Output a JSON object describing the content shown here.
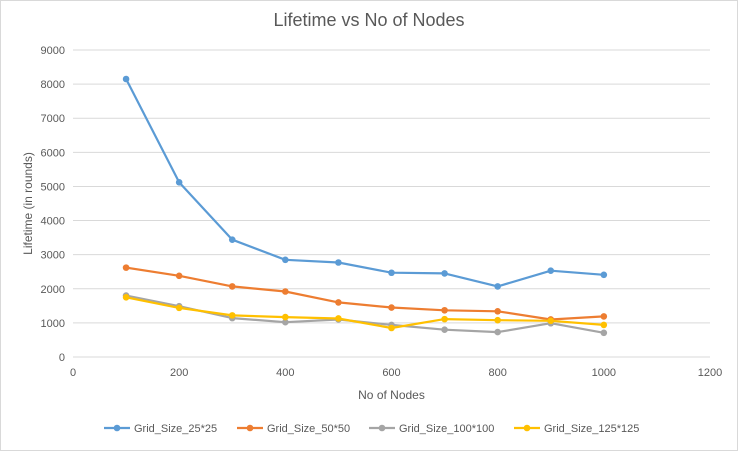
{
  "chart_data": {
    "type": "scatter",
    "title": "Lifetime vs No of Nodes",
    "xlabel": "No of Nodes",
    "ylabel": "Lifetime (in rounds)",
    "xlim": [
      0,
      1200
    ],
    "ylim": [
      0,
      9000
    ],
    "xticks": [
      0,
      200,
      400,
      600,
      800,
      1000,
      1200
    ],
    "yticks": [
      0,
      1000,
      2000,
      3000,
      4000,
      5000,
      6000,
      7000,
      8000,
      9000
    ],
    "grid": "horizontal",
    "legend_position": "bottom",
    "x": [
      100,
      200,
      300,
      400,
      500,
      600,
      700,
      800,
      900,
      1000
    ],
    "series": [
      {
        "name": "Grid_Size_25*25",
        "color": "#5b9bd5",
        "values": [
          8150,
          5120,
          3440,
          2850,
          2770,
          2470,
          2450,
          2070,
          2530,
          2410
        ]
      },
      {
        "name": "Grid_Size_50*50",
        "color": "#ed7d31",
        "values": [
          2620,
          2380,
          2070,
          1920,
          1600,
          1450,
          1370,
          1340,
          1100,
          1190
        ]
      },
      {
        "name": "Grid_Size_100*100",
        "color": "#a5a5a5",
        "values": [
          1800,
          1490,
          1140,
          1020,
          1100,
          940,
          800,
          730,
          990,
          710
        ]
      },
      {
        "name": "Grid_Size_125*125",
        "color": "#ffc000",
        "values": [
          1750,
          1440,
          1220,
          1170,
          1130,
          850,
          1110,
          1080,
          1060,
          940
        ]
      }
    ]
  }
}
